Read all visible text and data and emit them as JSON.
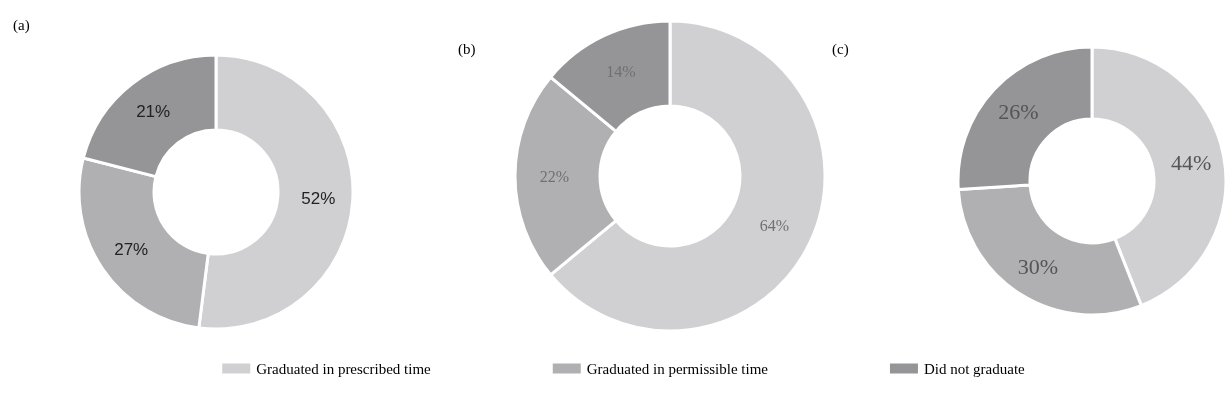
{
  "chart_data": [
    {
      "type": "donut",
      "title": "(a)",
      "categories": [
        null,
        null,
        null
      ],
      "values": [
        52,
        27,
        21
      ],
      "value_labels": [
        "52%",
        "27%",
        "21%"
      ],
      "colors": [
        "#d0d0d2",
        "#b0b0b3",
        "#959598"
      ]
    },
    {
      "type": "donut",
      "title": "(b)",
      "categories": [
        "Graduated in prescribed time",
        "Graduated in permissible time",
        "Did not graduate"
      ],
      "values": [
        64,
        22,
        14
      ],
      "value_labels": [
        "64%",
        "22%",
        "14%"
      ],
      "colors": [
        "#d0d0d2",
        "#b0b0b3",
        "#959598"
      ],
      "legend": "bottom"
    },
    {
      "type": "donut",
      "title": "(c)",
      "categories": [
        null,
        null,
        null
      ],
      "values": [
        44,
        30,
        26
      ],
      "value_labels": [
        "44%",
        "30%",
        "26%"
      ],
      "colors": [
        "#d0d0d2",
        "#b0b0b3",
        "#959598"
      ]
    }
  ]
}
